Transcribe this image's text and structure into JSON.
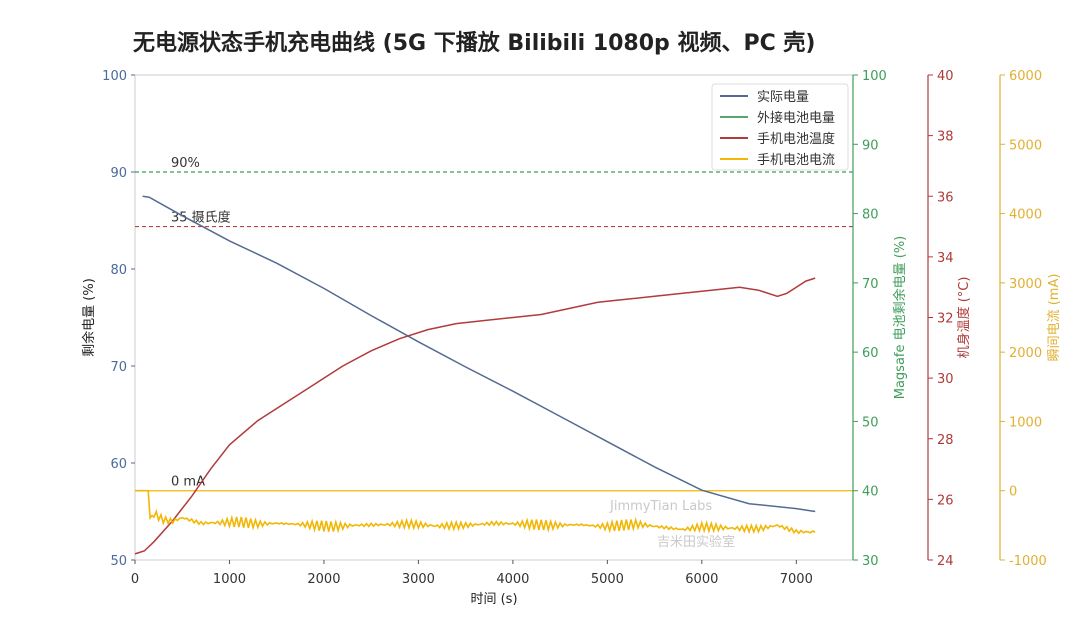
{
  "chart_data": {
    "type": "line",
    "title": "无电源状态手机充电曲线 (5G 下播放 Bilibili 1080p 视频、PC 壳)",
    "xlabel": "时间 (s)",
    "xlim": [
      0,
      7600
    ],
    "x_ticks": [
      "0",
      "1000",
      "2000",
      "3000",
      "4000",
      "5000",
      "6000",
      "7000"
    ],
    "x_tick_values": [
      0,
      1000,
      2000,
      3000,
      4000,
      5000,
      6000,
      7000
    ],
    "axes": {
      "left": {
        "label": "剩余电量 (%)",
        "range": [
          50,
          100
        ],
        "ticks": [
          "50",
          "60",
          "70",
          "80",
          "90",
          "100"
        ],
        "tick_values": [
          50,
          60,
          70,
          80,
          90,
          100
        ],
        "color": "#4c6a9a"
      },
      "right1": {
        "label": "Magsafe 电池剩余电量 (%)",
        "range": [
          30,
          100
        ],
        "ticks": [
          "30",
          "40",
          "50",
          "60",
          "70",
          "80",
          "90",
          "100"
        ],
        "tick_values": [
          30,
          40,
          50,
          60,
          70,
          80,
          90,
          100
        ],
        "color": "#3f9d5a"
      },
      "right2": {
        "label": "机身温度 (°C)",
        "range": [
          24,
          40
        ],
        "ticks": [
          "24",
          "26",
          "28",
          "30",
          "32",
          "34",
          "36",
          "38",
          "40"
        ],
        "tick_values": [
          24,
          26,
          28,
          30,
          32,
          34,
          36,
          38,
          40
        ],
        "color": "#b03a3a"
      },
      "right3": {
        "label": "瞬间电流 (mA)",
        "range": [
          -1000,
          6000
        ],
        "ticks": [
          "-1000",
          "0",
          "1000",
          "2000",
          "3000",
          "4000",
          "5000",
          "6000"
        ],
        "tick_values": [
          -1000,
          0,
          1000,
          2000,
          3000,
          4000,
          5000,
          6000
        ],
        "color": "#e0b030"
      }
    },
    "reference_lines": [
      {
        "label": "90%",
        "axis": "left",
        "value": 90,
        "color": "#3f9d5a"
      },
      {
        "label": "35 摄氏度",
        "axis": "right2",
        "value": 35,
        "color": "#c04040"
      },
      {
        "label": "0 mA",
        "axis": "right3",
        "value": 0,
        "color": "#f2b705"
      }
    ],
    "legend_position": "top-right",
    "series": [
      {
        "name": "实际电量",
        "axis": "left",
        "color": "#536b92",
        "x": [
          80,
          150,
          500,
          1000,
          1500,
          2000,
          2500,
          3000,
          3500,
          4000,
          4500,
          5000,
          5500,
          6000,
          6500,
          7000,
          7200
        ],
        "y": [
          87.5,
          87.4,
          85.5,
          82.9,
          80.6,
          78.0,
          75.2,
          72.5,
          69.9,
          67.4,
          64.8,
          62.2,
          59.6,
          57.2,
          55.8,
          55.3,
          55.0
        ]
      },
      {
        "name": "外接电池电量",
        "axis": "right1",
        "color": "#5aa56e",
        "x": [],
        "y": []
      },
      {
        "name": "手机电池温度",
        "axis": "right2",
        "color": "#b23b3b",
        "x": [
          0,
          100,
          200,
          400,
          600,
          800,
          1000,
          1300,
          1600,
          1900,
          2200,
          2500,
          2800,
          3100,
          3400,
          3700,
          4000,
          4300,
          4600,
          4900,
          5200,
          5500,
          5800,
          6100,
          6400,
          6600,
          6800,
          6900,
          7000,
          7100,
          7200
        ],
        "y": [
          24.2,
          24.3,
          24.6,
          25.3,
          26.1,
          27.0,
          27.8,
          28.6,
          29.2,
          29.8,
          30.4,
          30.9,
          31.3,
          31.6,
          31.8,
          31.9,
          32.0,
          32.1,
          32.3,
          32.5,
          32.6,
          32.7,
          32.8,
          32.9,
          33.0,
          32.9,
          32.7,
          32.8,
          33.0,
          33.2,
          33.3
        ]
      },
      {
        "name": "手机电池电流",
        "axis": "right3",
        "color": "#f2b705",
        "x": [
          0,
          140,
          160,
          200,
          300,
          400,
          500,
          600,
          700,
          900,
          1100,
          1300,
          1500,
          1800,
          2100,
          2300,
          2600,
          2900,
          3200,
          3500,
          3800,
          4100,
          4400,
          4700,
          5000,
          5300,
          5600,
          5800,
          6000,
          6300,
          6600,
          6800,
          7000,
          7200
        ],
        "y": [
          0,
          0,
          -380,
          -330,
          -420,
          -440,
          -390,
          -430,
          -470,
          -460,
          -450,
          -480,
          -470,
          -490,
          -520,
          -500,
          -490,
          -480,
          -510,
          -500,
          -470,
          -480,
          -500,
          -490,
          -520,
          -480,
          -530,
          -560,
          -520,
          -540,
          -550,
          -500,
          -590,
          -600
        ]
      }
    ],
    "watermark": [
      "JimmyTian Labs",
      "吉米田实验室"
    ]
  }
}
